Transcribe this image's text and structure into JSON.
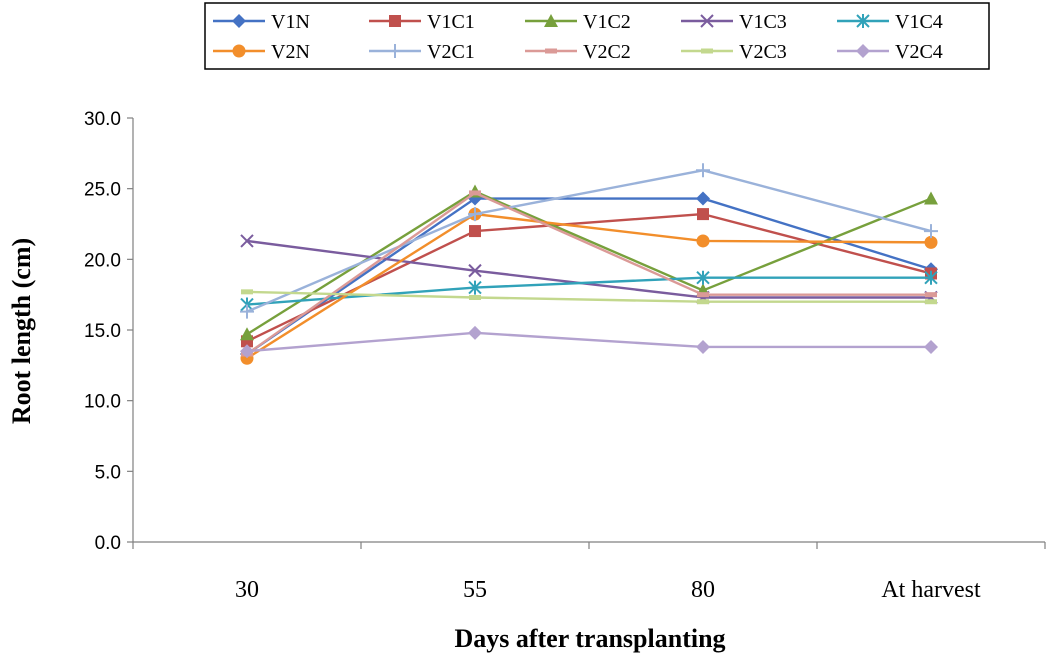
{
  "chart_data": {
    "type": "line",
    "categories": [
      "30",
      "55",
      "80",
      "At harvest"
    ],
    "xlabel": "Days after transplanting",
    "ylabel": "Root length (cm)",
    "ylim": [
      0,
      30
    ],
    "yticks": [
      "0.0",
      "5.0",
      "10.0",
      "15.0",
      "20.0",
      "25.0",
      "30.0"
    ],
    "grid": false,
    "legend_position": "top",
    "series": [
      {
        "name": "V1N",
        "color": "#4472C4",
        "marker": "diamond",
        "values": [
          13.3,
          24.3,
          24.3,
          19.3
        ]
      },
      {
        "name": "V1C1",
        "color": "#C0504D",
        "marker": "square",
        "values": [
          14.2,
          22.0,
          23.2,
          19.0
        ]
      },
      {
        "name": "V1C2",
        "color": "#77A03C",
        "marker": "triangle",
        "values": [
          14.7,
          24.8,
          17.8,
          24.3
        ]
      },
      {
        "name": "V1C3",
        "color": "#7A5C9E",
        "marker": "x",
        "values": [
          21.3,
          19.2,
          17.3,
          17.3
        ]
      },
      {
        "name": "V1C4",
        "color": "#31A2B9",
        "marker": "star",
        "values": [
          16.8,
          18.0,
          18.7,
          18.7
        ]
      },
      {
        "name": "V2N",
        "color": "#F28E2B",
        "marker": "circle",
        "values": [
          13.0,
          23.2,
          21.3,
          21.2
        ]
      },
      {
        "name": "V2C1",
        "color": "#9AB2DA",
        "marker": "plus",
        "values": [
          16.3,
          23.2,
          26.3,
          22.0
        ]
      },
      {
        "name": "V2C2",
        "color": "#DB9A97",
        "marker": "dash",
        "values": [
          13.3,
          24.7,
          17.5,
          17.5
        ]
      },
      {
        "name": "V2C3",
        "color": "#C3D88E",
        "marker": "dash",
        "values": [
          17.7,
          17.3,
          17.0,
          17.0
        ]
      },
      {
        "name": "V2C4",
        "color": "#B3A2CF",
        "marker": "diamond",
        "values": [
          13.5,
          14.8,
          13.8,
          13.8
        ]
      }
    ]
  }
}
